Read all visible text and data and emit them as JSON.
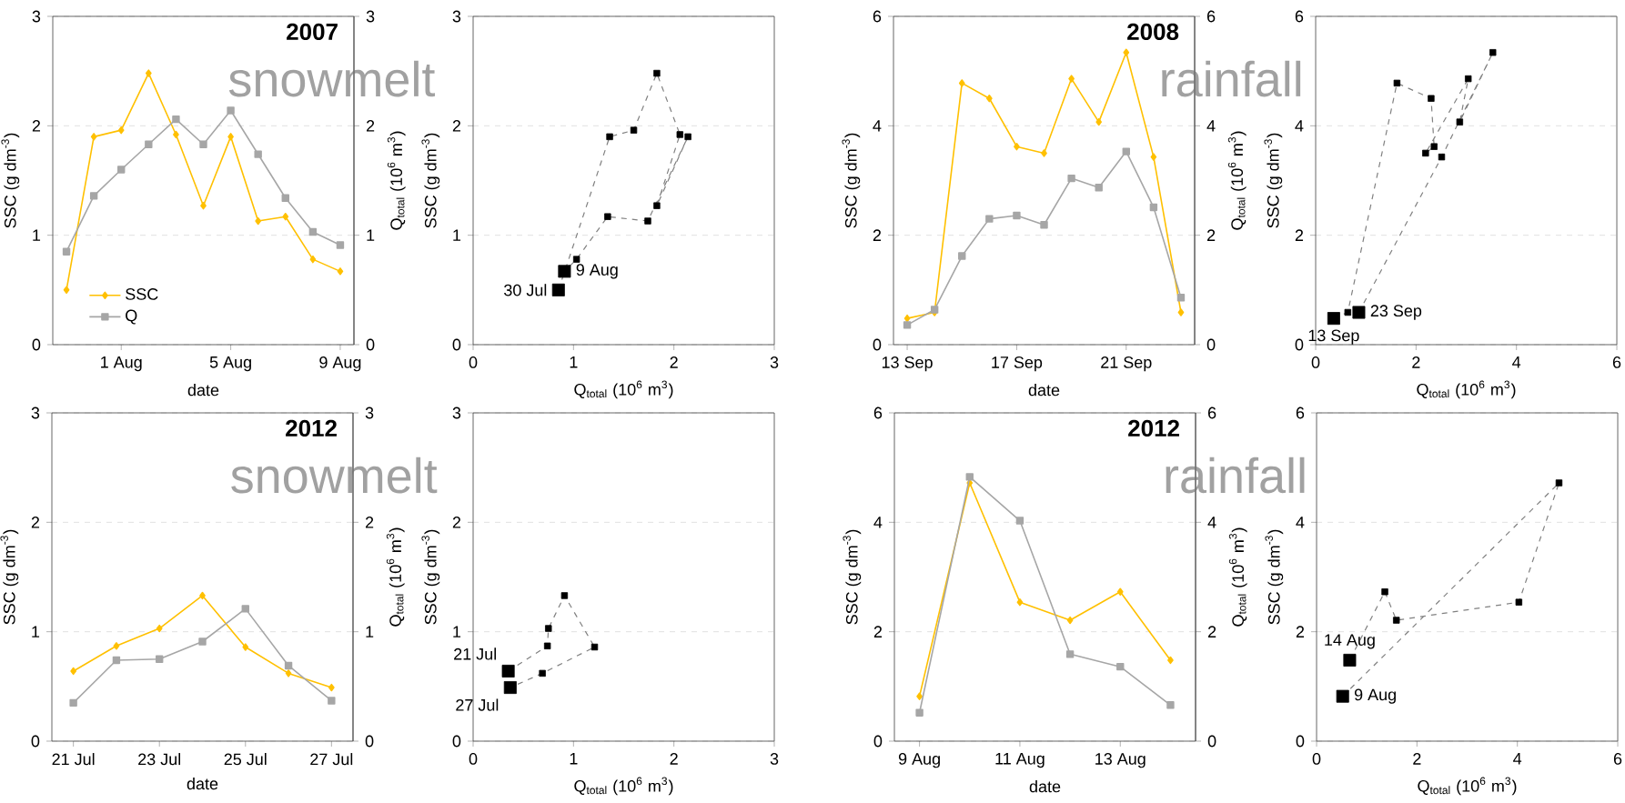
{
  "chart_data": [
    {
      "type": "line",
      "title": "2007",
      "xlabel": "date",
      "ylabel": "SSC (g dm$^{-3}$)",
      "y2label": "Q$_{total}$ (10$^{6}$ m$^{3}$)",
      "categories": [
        null,
        null,
        "1 Aug",
        null,
        null,
        null,
        "5 Aug",
        null,
        null,
        null,
        "9 Aug"
      ],
      "series": [
        {
          "name": "SSC",
          "color": "#ffc000",
          "marker": "diamond",
          "values": [
            0.5,
            1.9,
            1.96,
            2.48,
            1.92,
            1.27,
            1.9,
            1.13,
            1.17,
            0.78,
            0.67
          ]
        },
        {
          "name": "Q",
          "color": "#a6a6a6",
          "marker": "square",
          "axis": "y2",
          "values": [
            0.85,
            1.36,
            1.6,
            1.83,
            2.06,
            1.83,
            2.14,
            1.74,
            1.34,
            1.03,
            0.91
          ]
        }
      ],
      "ylim": [
        0,
        3
      ],
      "yticks": [
        0,
        1,
        2,
        3
      ],
      "y2lim": [
        0,
        3
      ],
      "y2ticks": [
        0,
        1,
        2,
        3
      ],
      "grid": "y",
      "legend": "bottom left",
      "annotations": [
        "snowmelt"
      ]
    },
    {
      "type": "scatter",
      "xlabel": "Q$_{total}$ (10$^{6}$ m$^{3}$)",
      "ylabel": "SSC (g dm$^{-3}$)",
      "series": [
        {
          "type": "line",
          "color": "#808080",
          "line_style": "dashed",
          "marker": "none",
          "x": [
            0.85,
            1.36,
            1.6,
            1.83,
            2.06,
            1.83,
            2.14,
            1.74,
            1.34,
            1.03,
            0.91
          ],
          "values": [
            0.5,
            1.9,
            1.96,
            2.48,
            1.92,
            1.27,
            1.9,
            1.13,
            1.17,
            0.78,
            0.67
          ]
        },
        {
          "color": "#000000",
          "marker": "square",
          "x": [
            0.85,
            1.36,
            1.6,
            1.83,
            2.06,
            1.83,
            2.14,
            1.74,
            1.34,
            1.03,
            0.91
          ],
          "values": [
            0.5,
            1.9,
            1.96,
            2.48,
            1.92,
            1.27,
            1.9,
            1.13,
            1.17,
            0.78,
            0.67
          ],
          "sizes": [
            1,
            0.25,
            0.25,
            0.25,
            0.25,
            0.25,
            0.25,
            0.25,
            0.25,
            0.25,
            1
          ]
        }
      ],
      "xlim": [
        0,
        3
      ],
      "xticks": [
        0,
        1,
        2,
        3
      ],
      "ylim": [
        0,
        3
      ],
      "yticks": [
        0,
        1,
        2,
        3
      ],
      "grid": "y",
      "annotations": [
        {
          "text": "30 Jul",
          "x": 0.85,
          "y": 0.5
        },
        {
          "text": "9 Aug",
          "x": 0.91,
          "y": 0.67
        }
      ]
    },
    {
      "type": "line",
      "title": "2008",
      "xlabel": "date",
      "ylabel": "SSC (g dm$^{-3}$)",
      "y2label": "Q$_{total}$ (10$^{6}$ m$^{3}$)",
      "categories": [
        "13 Sep",
        null,
        null,
        null,
        "17 Sep",
        null,
        null,
        null,
        "21 Sep",
        null,
        null
      ],
      "series": [
        {
          "color": "#ffc000",
          "marker": "diamond",
          "values": [
            0.48,
            0.59,
            4.78,
            4.5,
            3.62,
            3.5,
            4.86,
            4.07,
            5.34,
            3.43,
            0.59
          ]
        },
        {
          "color": "#a6a6a6",
          "marker": "square",
          "axis": "y2",
          "values": [
            0.36,
            0.64,
            1.62,
            2.3,
            2.36,
            2.19,
            3.04,
            2.87,
            3.53,
            2.51,
            0.86
          ]
        }
      ],
      "ylim": [
        0,
        6
      ],
      "yticks": [
        0,
        2,
        4,
        6
      ],
      "y2lim": [
        0,
        6
      ],
      "y2ticks": [
        0,
        2,
        4,
        6
      ],
      "grid": "y",
      "annotations": [
        "rainfall"
      ]
    },
    {
      "type": "scatter",
      "xlabel": "Q$_{total}$ (10$^{6}$ m$^{3}$)",
      "ylabel": "SSC (g dm$^{-3}$)",
      "series": [
        {
          "type": "line",
          "color": "#808080",
          "line_style": "dashed",
          "marker": "none",
          "x": [
            0.36,
            0.64,
            1.62,
            2.3,
            2.36,
            2.19,
            3.04,
            2.87,
            3.53,
            2.51,
            0.86
          ],
          "values": [
            0.48,
            0.59,
            4.78,
            4.5,
            3.62,
            3.5,
            4.86,
            4.07,
            5.34,
            3.43,
            0.59
          ]
        },
        {
          "color": "#000000",
          "marker": "square",
          "x": [
            0.36,
            0.64,
            1.62,
            2.3,
            2.36,
            2.19,
            3.04,
            2.87,
            3.53,
            2.51,
            0.86
          ],
          "values": [
            0.48,
            0.59,
            4.78,
            4.5,
            3.62,
            3.5,
            4.86,
            4.07,
            5.34,
            3.43,
            0.59
          ],
          "sizes": [
            1,
            0.25,
            0.25,
            0.25,
            0.25,
            0.25,
            0.25,
            0.25,
            0.25,
            0.25,
            1
          ]
        }
      ],
      "xlim": [
        0,
        6
      ],
      "xticks": [
        0,
        2,
        4,
        6
      ],
      "ylim": [
        0,
        6
      ],
      "yticks": [
        0,
        2,
        4,
        6
      ],
      "grid": "y",
      "annotations": [
        {
          "text": "13 Sep",
          "x": 0.36,
          "y": 0.48
        },
        {
          "text": "23 Sep",
          "x": 0.86,
          "y": 0.59
        }
      ]
    },
    {
      "type": "line",
      "title": "2012",
      "xlabel": "date",
      "ylabel": "SSC (g dm$^{-3}$)",
      "y2label": "Q$_{total}$ (10$^{6}$ m$^{3}$)",
      "categories": [
        "21 Jul",
        null,
        "23 Jul",
        null,
        "25 Jul",
        null,
        "27 Jul"
      ],
      "series": [
        {
          "color": "#ffc000",
          "marker": "diamond",
          "values": [
            0.64,
            0.87,
            1.03,
            1.33,
            0.86,
            0.62,
            0.49
          ]
        },
        {
          "color": "#a6a6a6",
          "marker": "square",
          "axis": "y2",
          "values": [
            0.35,
            0.74,
            0.75,
            0.91,
            1.21,
            0.69,
            0.37
          ]
        }
      ],
      "ylim": [
        0,
        3
      ],
      "yticks": [
        0,
        1,
        2,
        3
      ],
      "y2lim": [
        0,
        3
      ],
      "y2ticks": [
        0,
        1,
        2,
        3
      ],
      "grid": "y",
      "annotations": [
        "snowmelt"
      ]
    },
    {
      "type": "scatter",
      "xlabel": "Q$_{total}$ (10$^{6}$ m$^{3}$)",
      "ylabel": "SSC (g dm$^{-3}$)",
      "series": [
        {
          "type": "line",
          "color": "#808080",
          "line_style": "dashed",
          "marker": "none",
          "x": [
            0.35,
            0.74,
            0.75,
            0.91,
            1.21,
            0.69,
            0.37
          ],
          "values": [
            0.64,
            0.87,
            1.03,
            1.33,
            0.86,
            0.62,
            0.49
          ]
        },
        {
          "color": "#000000",
          "marker": "square",
          "x": [
            0.35,
            0.74,
            0.75,
            0.91,
            1.21,
            0.69,
            0.37
          ],
          "values": [
            0.64,
            0.87,
            1.03,
            1.33,
            0.86,
            0.62,
            0.49
          ],
          "sizes": [
            1,
            0.25,
            0.25,
            0.25,
            0.25,
            0.25,
            1
          ]
        }
      ],
      "xlim": [
        0,
        3
      ],
      "xticks": [
        0,
        1,
        2,
        3
      ],
      "ylim": [
        0,
        3
      ],
      "yticks": [
        0,
        1,
        2,
        3
      ],
      "grid": "y",
      "annotations": [
        {
          "text": "21 Jul",
          "x": 0.35,
          "y": 0.64
        },
        {
          "text": "27 Jul",
          "x": 0.37,
          "y": 0.49
        }
      ]
    },
    {
      "type": "line",
      "title": "2012",
      "xlabel": "date",
      "ylabel": "SSC (g dm$^{-3}$)",
      "y2label": "Q$_{total}$ (10$^{6}$ m$^{3}$)",
      "categories": [
        "9 Aug",
        null,
        "11 Aug",
        null,
        "13 Aug",
        null
      ],
      "series": [
        {
          "color": "#ffc000",
          "marker": "diamond",
          "values": [
            0.82,
            4.72,
            2.54,
            2.21,
            2.73,
            1.48
          ]
        },
        {
          "color": "#a6a6a6",
          "marker": "square",
          "axis": "y2",
          "values": [
            0.52,
            4.83,
            4.03,
            1.59,
            1.36,
            0.66
          ]
        }
      ],
      "ylim": [
        0,
        6
      ],
      "yticks": [
        0,
        2,
        4,
        6
      ],
      "y2lim": [
        0,
        6
      ],
      "y2ticks": [
        0,
        2,
        4,
        6
      ],
      "grid": "y",
      "annotations": [
        "rainfall"
      ]
    },
    {
      "type": "scatter",
      "xlabel": "Q$_{total}$ (10$^{6}$ m$^{3}$)",
      "ylabel": "SSC (g dm$^{-3}$)",
      "series": [
        {
          "type": "line",
          "color": "#808080",
          "line_style": "dashed",
          "marker": "none",
          "x": [
            0.52,
            4.83,
            4.03,
            1.59,
            1.36,
            0.66
          ],
          "values": [
            0.82,
            4.72,
            2.54,
            2.21,
            2.73,
            1.48
          ]
        },
        {
          "color": "#000000",
          "marker": "square",
          "x": [
            0.52,
            4.83,
            4.03,
            1.59,
            1.36,
            0.66
          ],
          "values": [
            0.82,
            4.72,
            2.54,
            2.21,
            2.73,
            1.48
          ],
          "sizes": [
            1,
            0.25,
            0.25,
            0.25,
            0.25,
            1
          ]
        }
      ],
      "xlim": [
        0,
        6
      ],
      "xticks": [
        0,
        2,
        4,
        6
      ],
      "ylim": [
        0,
        6
      ],
      "yticks": [
        0,
        2,
        4,
        6
      ],
      "grid": "y",
      "annotations": [
        {
          "text": "14 Aug",
          "x": 0.66,
          "y": 1.48
        },
        {
          "text": "9 Aug",
          "x": 0.52,
          "y": 0.82
        }
      ]
    }
  ]
}
